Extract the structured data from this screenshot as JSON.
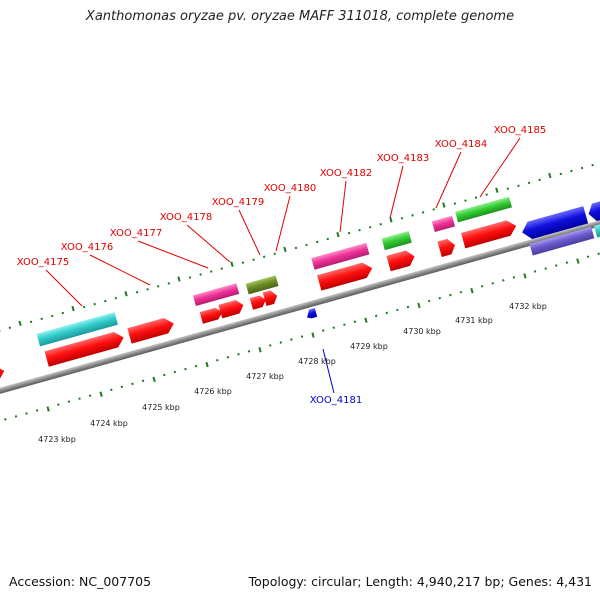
{
  "title": "Xanthomonas oryzae pv. oryzae MAFF 311018, complete genome",
  "accession_text": "Accession: NC_007705",
  "topology_text": "Topology: circular; Length: 4,940,217 bp; Genes: 4,431",
  "kbp_labels": [
    "4723 kbp",
    "4724 kbp",
    "4725 kbp",
    "4726 kbp",
    "4727 kbp",
    "4728 kbp",
    "4729 kbp",
    "4730 kbp",
    "4731 kbp",
    "4732 kbp"
  ],
  "gene_labels_top": [
    "XOO_4175",
    "XOO_4176",
    "XOO_4177",
    "XOO_4178",
    "XOO_4179",
    "XOO_4180",
    "XOO_4182",
    "XOO_4183",
    "XOO_4184",
    "XOO_4185"
  ],
  "gene_label_bottom": "XOO_4181",
  "colors": {
    "label_top": "#e00000",
    "label_bottom": "#0000cc",
    "tick": "#1e7a1e",
    "backbone": "#8a8a8a",
    "cds": "#ff1010",
    "cyan": "#33cccc",
    "magenta": "#ee3399",
    "olive": "#6b8e23",
    "green": "#33cc33",
    "blue": "#1010dd",
    "slate": "#6a5acd"
  }
}
